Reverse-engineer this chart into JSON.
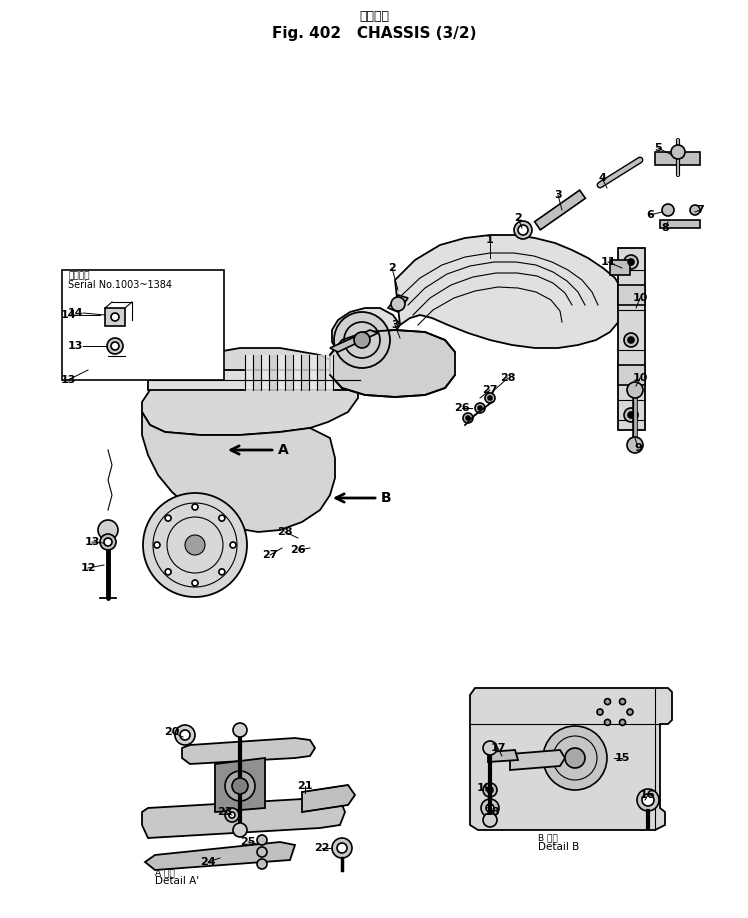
{
  "title_jp": "シャーシ",
  "title_en": "Fig. 402   CHASSIS (3/2)",
  "bg_color": "#ffffff",
  "serial_jp": "適用仕様",
  "serial_en": "Serial No.1003~1384",
  "detail_a_jp": "A 詳細",
  "detail_a_en": "Detail A'",
  "detail_b_jp": "B 詳細",
  "detail_b_en": "Detail B"
}
